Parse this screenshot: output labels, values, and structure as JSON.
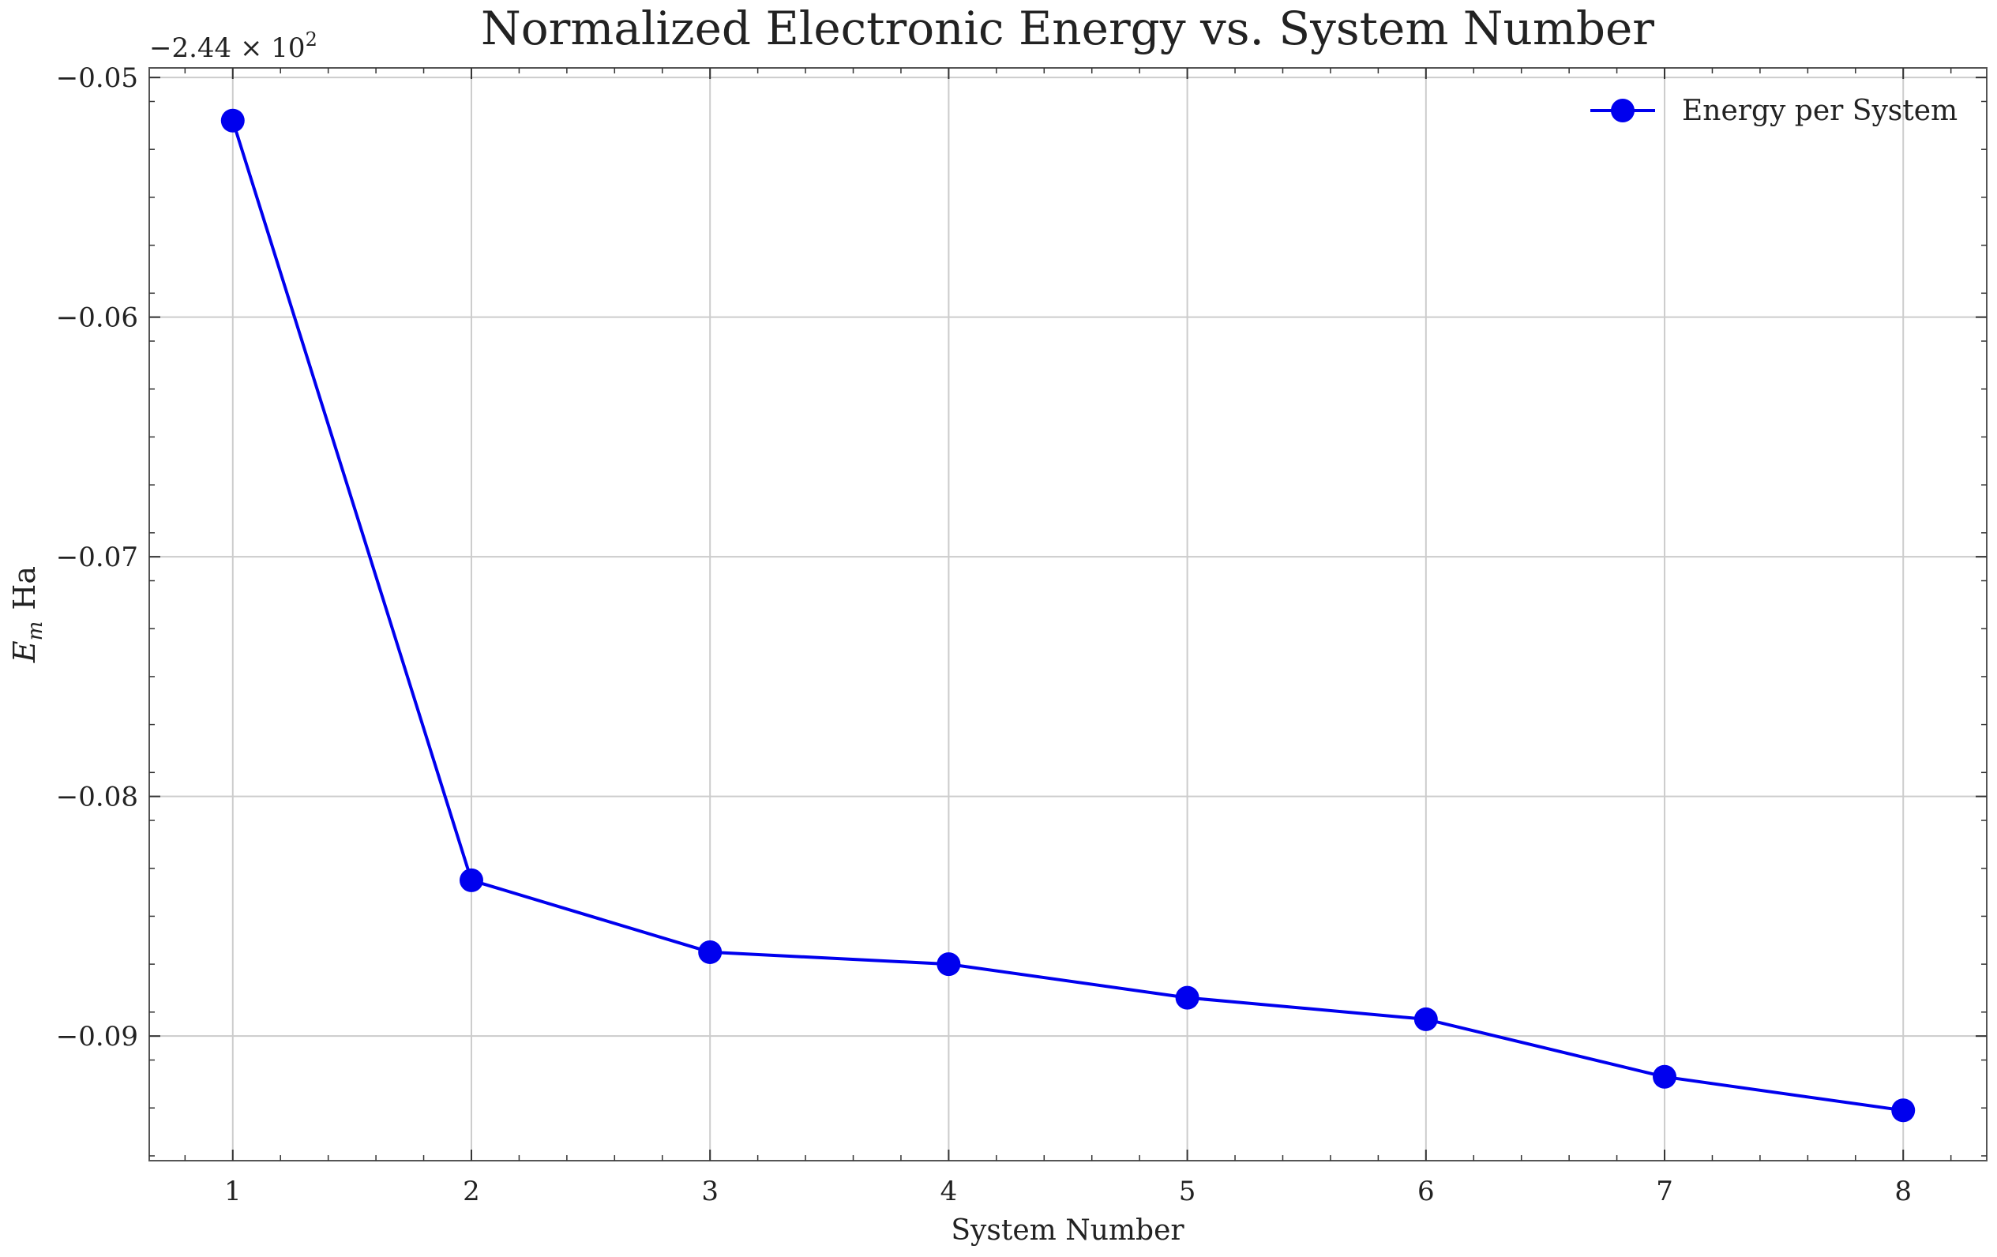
{
  "chart_data": {
    "type": "line",
    "title": "Normalized Electronic Energy vs. System Number",
    "xlabel": "System Number",
    "ylabel": "E_m Ha",
    "ylabel_parts": {
      "symbol": "E",
      "subscript": "m",
      "unit": "Ha"
    },
    "y_offset_label": "−2.44 × 10²",
    "y_offset_parts": {
      "mantissa": "−2.44 × 10",
      "exponent": "2"
    },
    "xlim": [
      0.65,
      8.35
    ],
    "ylim": [
      -0.0952,
      -0.0496
    ],
    "x_ticks": [
      1,
      2,
      3,
      4,
      5,
      6,
      7,
      8
    ],
    "x_tick_labels": [
      "1",
      "2",
      "3",
      "4",
      "5",
      "6",
      "7",
      "8"
    ],
    "y_ticks": [
      -0.09,
      -0.08,
      -0.07,
      -0.06,
      -0.05
    ],
    "y_tick_labels": [
      "−0.09",
      "−0.08",
      "−0.07",
      "−0.06",
      "−0.05"
    ],
    "grid": true,
    "legend_position": "top-right",
    "series": [
      {
        "name": "Energy per System",
        "color": "#0000ee",
        "marker": "circle",
        "x": [
          1,
          2,
          3,
          4,
          5,
          6,
          7,
          8
        ],
        "y": [
          -0.0518,
          -0.0835,
          -0.0865,
          -0.087,
          -0.0884,
          -0.0893,
          -0.0917,
          -0.0931
        ]
      }
    ]
  }
}
